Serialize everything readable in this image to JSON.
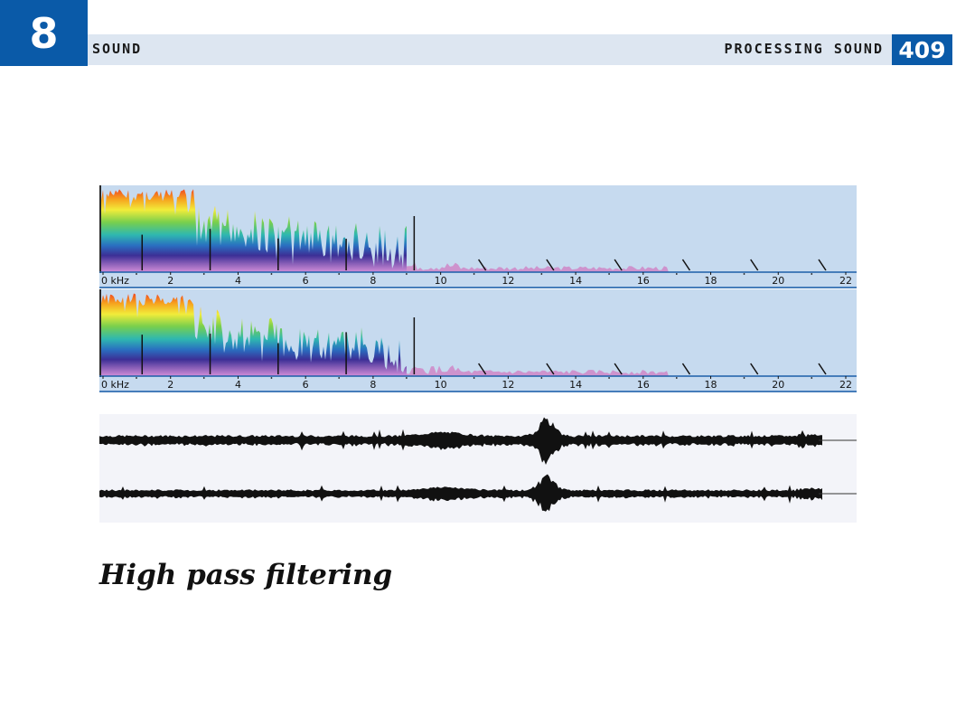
{
  "header": {
    "chapter_number": "8",
    "section_title": "SOUND",
    "running_title": "PROCESSING SOUND",
    "page_number": "409"
  },
  "figure": {
    "caption": "High pass filtering",
    "frequency_axis": {
      "tick_labels": [
        "0 kHz",
        "2",
        "4",
        "6",
        "8",
        "10",
        "12",
        "14",
        "16",
        "18",
        "20",
        "22"
      ],
      "min": 0,
      "max": 22
    },
    "colors": {
      "panel_bg": "#c6daef",
      "axis_line": "#1b5ea8",
      "wave_bg": "#f3f4f9",
      "waveform": "#111111"
    }
  }
}
